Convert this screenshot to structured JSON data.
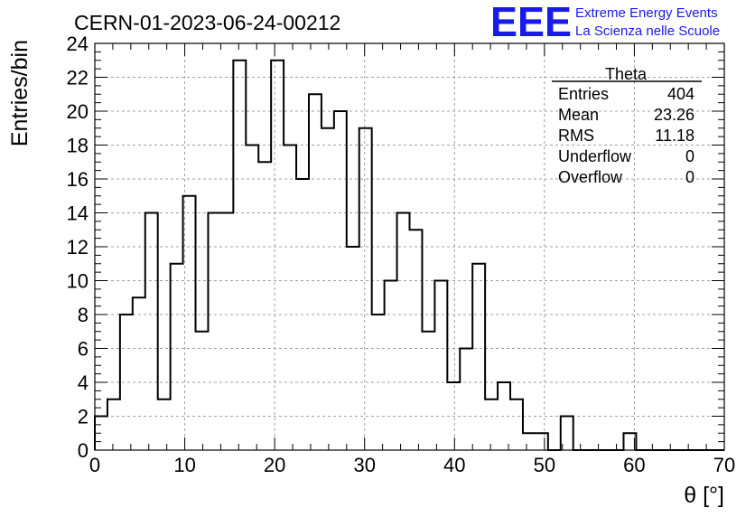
{
  "header": {
    "title": "CERN-01-2023-06-24-00212",
    "logo_text": "EEE",
    "logo_line1": "Extreme Energy Events",
    "logo_line2": "La Scienza nelle Scuole"
  },
  "stats": {
    "title": "Theta",
    "rows": [
      {
        "label": "Entries",
        "value": "404"
      },
      {
        "label": "Mean",
        "value": "23.26"
      },
      {
        "label": "RMS",
        "value": "11.18"
      },
      {
        "label": "Underflow",
        "value": "0"
      },
      {
        "label": "Overflow",
        "value": "0"
      }
    ]
  },
  "colors": {
    "logo": "#1a1ae6",
    "grid": "#a0a0a0",
    "line": "#000000"
  },
  "chart_data": {
    "type": "histogram",
    "xlabel": "θ [°]",
    "ylabel": "Entries/bin",
    "xlim": [
      0,
      70
    ],
    "ylim": [
      0,
      24
    ],
    "bin_width": 1.4,
    "x_ticks": [
      0,
      10,
      20,
      30,
      40,
      50,
      60,
      70
    ],
    "y_ticks": [
      0,
      2,
      4,
      6,
      8,
      10,
      12,
      14,
      16,
      18,
      20,
      22,
      24
    ],
    "grid": true,
    "values": [
      2,
      3,
      8,
      9,
      14,
      3,
      11,
      15,
      7,
      14,
      14,
      23,
      18,
      17,
      23,
      18,
      16,
      21,
      19,
      20,
      12,
      19,
      8,
      10,
      14,
      13,
      7,
      10,
      4,
      6,
      11,
      3,
      4,
      3,
      1,
      1,
      0,
      2,
      0,
      0,
      0,
      0,
      1,
      0,
      0,
      0,
      0,
      0,
      0,
      0
    ]
  }
}
